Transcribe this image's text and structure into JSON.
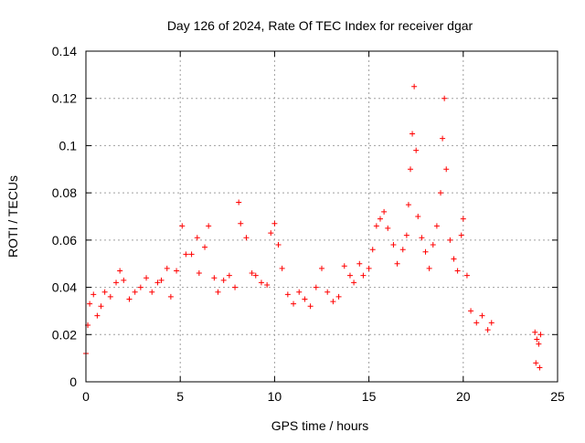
{
  "chart_data": {
    "type": "scatter",
    "title": "Day 126 of 2024, Rate Of TEC Index for receiver dgar",
    "xlabel": "GPS time / hours",
    "ylabel": "ROTI / TECUs",
    "xlim": [
      0,
      25
    ],
    "ylim": [
      0,
      0.14
    ],
    "xticks": [
      "0",
      "5",
      "10",
      "15",
      "20",
      "25"
    ],
    "yticks": [
      "0",
      "0.02",
      "0.04",
      "0.06",
      "0.08",
      "0.1",
      "0.12",
      "0.14"
    ],
    "grid": true,
    "marker": "+",
    "color": "#ff0000",
    "series": [
      {
        "points": [
          [
            0.0,
            0.012
          ],
          [
            0.1,
            0.024
          ],
          [
            0.2,
            0.033
          ],
          [
            0.4,
            0.037
          ],
          [
            0.6,
            0.028
          ],
          [
            0.8,
            0.032
          ],
          [
            1.0,
            0.038
          ],
          [
            1.3,
            0.036
          ],
          [
            1.6,
            0.042
          ],
          [
            1.8,
            0.047
          ],
          [
            2.0,
            0.043
          ],
          [
            2.3,
            0.035
          ],
          [
            2.6,
            0.038
          ],
          [
            2.9,
            0.04
          ],
          [
            3.2,
            0.044
          ],
          [
            3.5,
            0.038
          ],
          [
            3.8,
            0.042
          ],
          [
            4.0,
            0.043
          ],
          [
            4.3,
            0.048
          ],
          [
            4.5,
            0.036
          ],
          [
            4.8,
            0.047
          ],
          [
            5.1,
            0.066
          ],
          [
            5.3,
            0.054
          ],
          [
            5.6,
            0.054
          ],
          [
            5.9,
            0.061
          ],
          [
            6.0,
            0.046
          ],
          [
            6.3,
            0.057
          ],
          [
            6.5,
            0.066
          ],
          [
            6.8,
            0.044
          ],
          [
            7.0,
            0.038
          ],
          [
            7.3,
            0.043
          ],
          [
            7.6,
            0.045
          ],
          [
            7.9,
            0.04
          ],
          [
            8.1,
            0.076
          ],
          [
            8.2,
            0.067
          ],
          [
            8.5,
            0.061
          ],
          [
            8.8,
            0.046
          ],
          [
            9.0,
            0.045
          ],
          [
            9.3,
            0.042
          ],
          [
            9.6,
            0.041
          ],
          [
            9.8,
            0.063
          ],
          [
            10.0,
            0.067
          ],
          [
            10.2,
            0.058
          ],
          [
            10.4,
            0.048
          ],
          [
            10.7,
            0.037
          ],
          [
            11.0,
            0.033
          ],
          [
            11.3,
            0.038
          ],
          [
            11.6,
            0.035
          ],
          [
            11.9,
            0.032
          ],
          [
            12.2,
            0.04
          ],
          [
            12.5,
            0.048
          ],
          [
            12.8,
            0.038
          ],
          [
            13.1,
            0.034
          ],
          [
            13.4,
            0.036
          ],
          [
            13.7,
            0.049
          ],
          [
            14.0,
            0.045
          ],
          [
            14.2,
            0.042
          ],
          [
            14.5,
            0.05
          ],
          [
            14.7,
            0.045
          ],
          [
            15.0,
            0.048
          ],
          [
            15.2,
            0.056
          ],
          [
            15.4,
            0.066
          ],
          [
            15.6,
            0.069
          ],
          [
            15.8,
            0.072
          ],
          [
            16.0,
            0.065
          ],
          [
            16.3,
            0.058
          ],
          [
            16.5,
            0.05
          ],
          [
            16.8,
            0.056
          ],
          [
            17.0,
            0.062
          ],
          [
            17.1,
            0.075
          ],
          [
            17.2,
            0.09
          ],
          [
            17.3,
            0.105
          ],
          [
            17.4,
            0.125
          ],
          [
            17.5,
            0.098
          ],
          [
            17.6,
            0.07
          ],
          [
            17.8,
            0.061
          ],
          [
            18.0,
            0.055
          ],
          [
            18.2,
            0.048
          ],
          [
            18.4,
            0.058
          ],
          [
            18.6,
            0.066
          ],
          [
            18.8,
            0.08
          ],
          [
            18.9,
            0.103
          ],
          [
            19.0,
            0.12
          ],
          [
            19.1,
            0.09
          ],
          [
            19.3,
            0.06
          ],
          [
            19.5,
            0.052
          ],
          [
            19.7,
            0.047
          ],
          [
            19.9,
            0.062
          ],
          [
            20.0,
            0.069
          ],
          [
            20.2,
            0.045
          ],
          [
            20.4,
            0.03
          ],
          [
            20.7,
            0.025
          ],
          [
            21.0,
            0.028
          ],
          [
            21.3,
            0.022
          ],
          [
            21.5,
            0.025
          ],
          [
            23.8,
            0.021
          ],
          [
            23.9,
            0.018
          ],
          [
            24.0,
            0.016
          ],
          [
            24.1,
            0.02
          ],
          [
            23.85,
            0.008
          ],
          [
            24.05,
            0.006
          ]
        ]
      }
    ]
  }
}
